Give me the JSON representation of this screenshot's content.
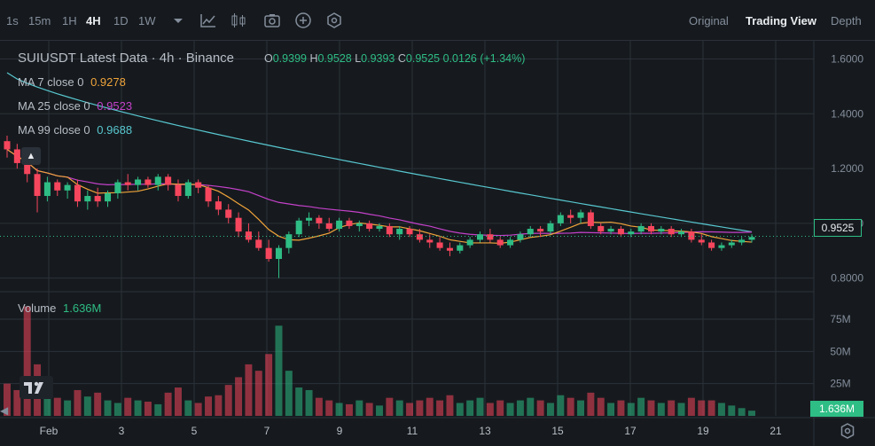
{
  "toolbar": {
    "timeframes": [
      "1s",
      "15m",
      "1H",
      "4H",
      "1D",
      "1W"
    ],
    "active_timeframe": "4H",
    "views": [
      "Original",
      "Trading View",
      "Depth"
    ],
    "active_view": "Trading View"
  },
  "header": {
    "symbol": "SUIUSDT Latest Data · 4h · Binance",
    "o_label": "O",
    "o_value": "0.9399",
    "h_label": "H",
    "h_value": "0.9528",
    "l_label": "L",
    "l_value": "0.9393",
    "c_label": "C",
    "c_value": "0.9525",
    "change": "0.0126 (+1.34%)"
  },
  "ma": [
    {
      "label": "MA 7 close 0",
      "value": "0.9278",
      "color": "#f0a33a"
    },
    {
      "label": "MA 25 close 0",
      "value": "0.9523",
      "color": "#c341c9"
    },
    {
      "label": "MA 99 close 0",
      "value": "0.9688",
      "color": "#58c7d0"
    }
  ],
  "volume": {
    "label": "Volume",
    "value": "1.636M"
  },
  "price_tag": "0.9525",
  "volume_tag": "1.636M",
  "colors": {
    "up": "#2ebd85",
    "down": "#f6465d",
    "grid": "#2b3139",
    "axis_text": "#848e9c"
  },
  "chart_data": {
    "type": "candlestick",
    "price_axis_ticks": [
      "1.6000",
      "1.4000",
      "1.2000",
      "1.0000",
      "0.8000"
    ],
    "price_ylim": [
      0.76,
      1.66
    ],
    "volume_axis_ticks": [
      "75M",
      "50M",
      "25M"
    ],
    "volume_ylim": [
      0,
      95
    ],
    "x_ticks": [
      "Feb",
      "3",
      "5",
      "7",
      "9",
      "11",
      "13",
      "15",
      "17",
      "19",
      "21"
    ],
    "ma99_start": 1.55,
    "candles": [
      [
        1.3,
        1.32,
        1.24,
        1.27,
        25
      ],
      [
        1.27,
        1.29,
        1.2,
        1.22,
        20
      ],
      [
        1.22,
        1.25,
        1.15,
        1.18,
        85
      ],
      [
        1.18,
        1.2,
        1.04,
        1.1,
        40
      ],
      [
        1.1,
        1.17,
        1.08,
        1.15,
        18
      ],
      [
        1.15,
        1.16,
        1.1,
        1.12,
        14
      ],
      [
        1.12,
        1.15,
        1.09,
        1.14,
        12
      ],
      [
        1.14,
        1.16,
        1.06,
        1.08,
        20
      ],
      [
        1.08,
        1.12,
        1.05,
        1.1,
        15
      ],
      [
        1.1,
        1.13,
        1.06,
        1.08,
        18
      ],
      [
        1.08,
        1.12,
        1.06,
        1.11,
        12
      ],
      [
        1.11,
        1.16,
        1.09,
        1.15,
        10
      ],
      [
        1.15,
        1.18,
        1.12,
        1.14,
        14
      ],
      [
        1.14,
        1.17,
        1.12,
        1.16,
        12
      ],
      [
        1.16,
        1.17,
        1.13,
        1.14,
        11
      ],
      [
        1.14,
        1.18,
        1.12,
        1.17,
        9
      ],
      [
        1.17,
        1.18,
        1.12,
        1.14,
        18
      ],
      [
        1.14,
        1.16,
        1.08,
        1.1,
        22
      ],
      [
        1.1,
        1.16,
        1.09,
        1.15,
        12
      ],
      [
        1.15,
        1.16,
        1.11,
        1.13,
        10
      ],
      [
        1.13,
        1.14,
        1.06,
        1.08,
        15
      ],
      [
        1.08,
        1.1,
        1.03,
        1.05,
        16
      ],
      [
        1.05,
        1.07,
        1.0,
        1.02,
        24
      ],
      [
        1.02,
        1.04,
        0.95,
        0.97,
        30
      ],
      [
        0.97,
        1.0,
        0.93,
        0.94,
        40
      ],
      [
        0.94,
        0.97,
        0.9,
        0.91,
        35
      ],
      [
        0.91,
        0.94,
        0.86,
        0.87,
        48
      ],
      [
        0.87,
        0.92,
        0.8,
        0.91,
        70
      ],
      [
        0.91,
        0.97,
        0.89,
        0.96,
        35
      ],
      [
        0.96,
        1.02,
        0.95,
        1.01,
        22
      ],
      [
        1.01,
        1.04,
        0.99,
        1.02,
        20
      ],
      [
        1.02,
        1.03,
        0.98,
        1.0,
        14
      ],
      [
        1.0,
        1.02,
        0.97,
        0.98,
        12
      ],
      [
        0.98,
        1.02,
        0.97,
        1.01,
        10
      ],
      [
        1.01,
        1.02,
        0.98,
        0.99,
        9
      ],
      [
        0.99,
        1.01,
        0.97,
        1.0,
        12
      ],
      [
        1.0,
        1.01,
        0.97,
        0.98,
        10
      ],
      [
        0.98,
        1.0,
        0.97,
        0.99,
        8
      ],
      [
        0.99,
        1.0,
        0.95,
        0.96,
        14
      ],
      [
        0.96,
        0.99,
        0.94,
        0.98,
        12
      ],
      [
        0.98,
        0.99,
        0.95,
        0.96,
        10
      ],
      [
        0.96,
        0.98,
        0.93,
        0.94,
        12
      ],
      [
        0.94,
        0.96,
        0.91,
        0.93,
        14
      ],
      [
        0.93,
        0.95,
        0.9,
        0.91,
        12
      ],
      [
        0.91,
        0.93,
        0.88,
        0.9,
        16
      ],
      [
        0.9,
        0.93,
        0.89,
        0.92,
        10
      ],
      [
        0.92,
        0.95,
        0.91,
        0.94,
        12
      ],
      [
        0.94,
        0.97,
        0.93,
        0.96,
        14
      ],
      [
        0.96,
        0.98,
        0.93,
        0.94,
        10
      ],
      [
        0.94,
        0.95,
        0.91,
        0.92,
        12
      ],
      [
        0.92,
        0.95,
        0.91,
        0.94,
        10
      ],
      [
        0.94,
        0.97,
        0.93,
        0.96,
        12
      ],
      [
        0.96,
        0.99,
        0.95,
        0.98,
        14
      ],
      [
        0.98,
        0.99,
        0.95,
        0.97,
        12
      ],
      [
        0.97,
        1.01,
        0.96,
        1.0,
        10
      ],
      [
        1.0,
        1.04,
        0.99,
        1.03,
        16
      ],
      [
        1.03,
        1.05,
        1.0,
        1.02,
        14
      ],
      [
        1.02,
        1.05,
        1.0,
        1.04,
        12
      ],
      [
        1.04,
        1.05,
        0.98,
        0.99,
        18
      ],
      [
        0.99,
        1.0,
        0.96,
        0.97,
        14
      ],
      [
        0.97,
        0.99,
        0.96,
        0.98,
        10
      ],
      [
        0.98,
        0.99,
        0.95,
        0.96,
        12
      ],
      [
        0.96,
        0.98,
        0.95,
        0.97,
        10
      ],
      [
        0.97,
        1.0,
        0.96,
        0.99,
        14
      ],
      [
        0.99,
        1.0,
        0.96,
        0.97,
        12
      ],
      [
        0.97,
        0.99,
        0.96,
        0.98,
        10
      ],
      [
        0.98,
        0.99,
        0.95,
        0.96,
        12
      ],
      [
        0.96,
        0.98,
        0.95,
        0.97,
        10
      ],
      [
        0.97,
        0.98,
        0.93,
        0.94,
        14
      ],
      [
        0.94,
        0.96,
        0.92,
        0.93,
        12
      ],
      [
        0.93,
        0.94,
        0.9,
        0.91,
        12
      ],
      [
        0.91,
        0.93,
        0.9,
        0.92,
        10
      ],
      [
        0.92,
        0.94,
        0.91,
        0.93,
        8
      ],
      [
        0.93,
        0.95,
        0.92,
        0.94,
        6
      ],
      [
        0.94,
        0.96,
        0.93,
        0.95,
        4
      ]
    ]
  }
}
